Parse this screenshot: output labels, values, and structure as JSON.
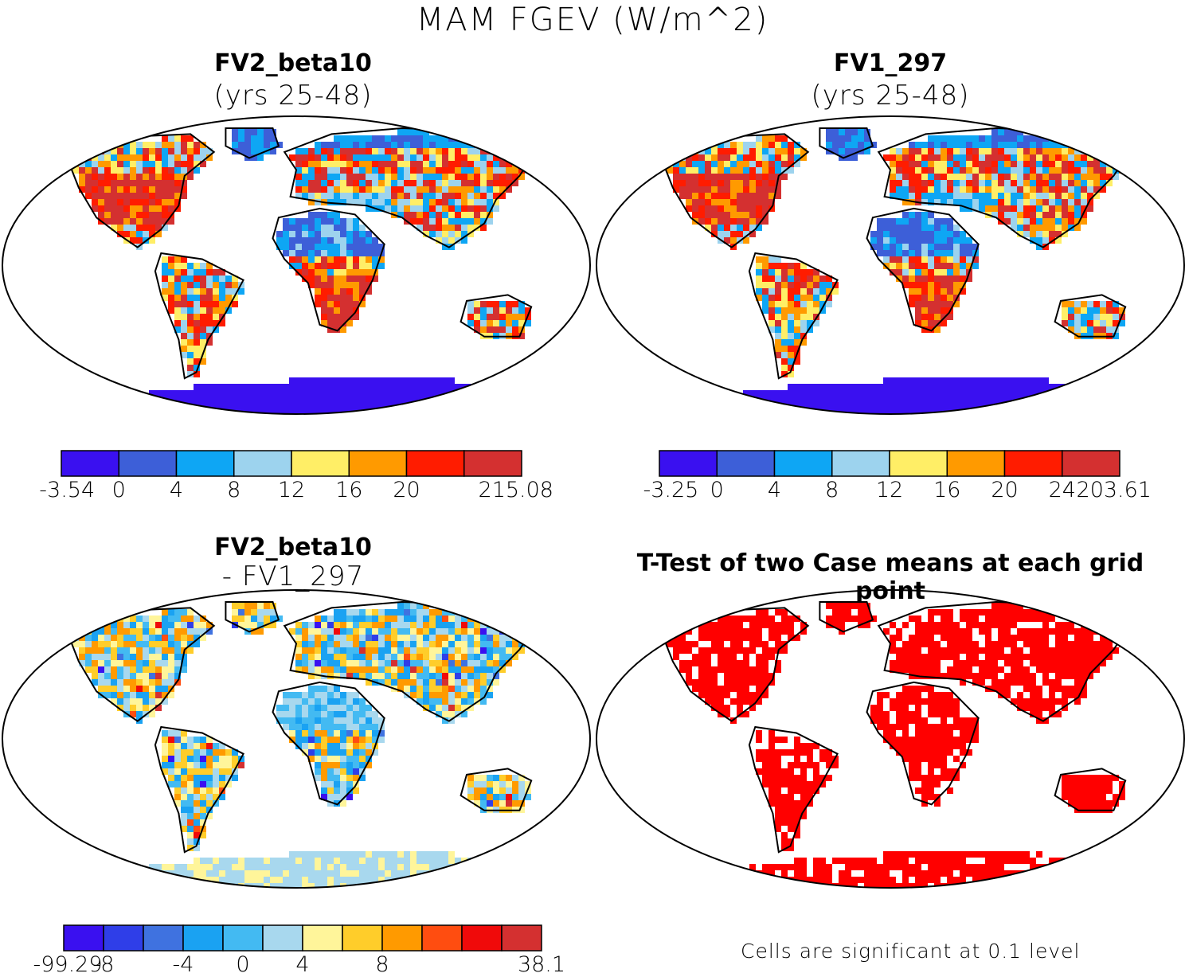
{
  "figure": {
    "title": "MAM FGEV (W/m^2)"
  },
  "panels": {
    "top_left": {
      "title": "FV2_beta10",
      "subtitle": "(yrs 25-48)"
    },
    "top_right": {
      "title": "FV1_297",
      "subtitle": "(yrs 25-48)"
    },
    "bottom_left": {
      "title": "FV2_beta10",
      "subtitle": "- FV1_297"
    },
    "bottom_right": {
      "title": "T-Test of two Case means at each grid point",
      "footnote": "Cells are significant at 0.1 level",
      "significant_color": "#ff0000"
    }
  },
  "colorbars": {
    "top_left": {
      "labels": [
        "-3.54",
        "0",
        "4",
        "8",
        "12",
        "16",
        "20",
        "215.08"
      ],
      "colors": [
        "#3a10f0",
        "#3d5fd8",
        "#0ea6f4",
        "#9dd3ee",
        "#ffee66",
        "#ff9a00",
        "#ff1c00",
        "#d43030"
      ]
    },
    "top_right": {
      "labels": [
        "-3.25",
        "0",
        "4",
        "8",
        "12",
        "16",
        "20",
        "24",
        "203.61"
      ],
      "colors": [
        "#3a10f0",
        "#3d5fd8",
        "#0ea6f4",
        "#9dd3ee",
        "#ffee66",
        "#ff9a00",
        "#ff1c00",
        "#d43030"
      ]
    },
    "bottom_left": {
      "labels": [
        "-99.29",
        "-8",
        "-4",
        "0",
        "4",
        "8",
        "38.1"
      ],
      "colors": [
        "#3a10f0",
        "#2f3ee8",
        "#3f72e0",
        "#1aa2f2",
        "#43baf2",
        "#a8d8ee",
        "#fff59a",
        "#ffcd2a",
        "#ff9a00",
        "#ff4d10",
        "#f00a0a",
        "#d43030"
      ]
    }
  },
  "map_colors": {
    "land_outline": "#000000",
    "frame": "#000000",
    "antarctica": "#3a10f0",
    "diff_antarctica": "#a8d8ee"
  }
}
